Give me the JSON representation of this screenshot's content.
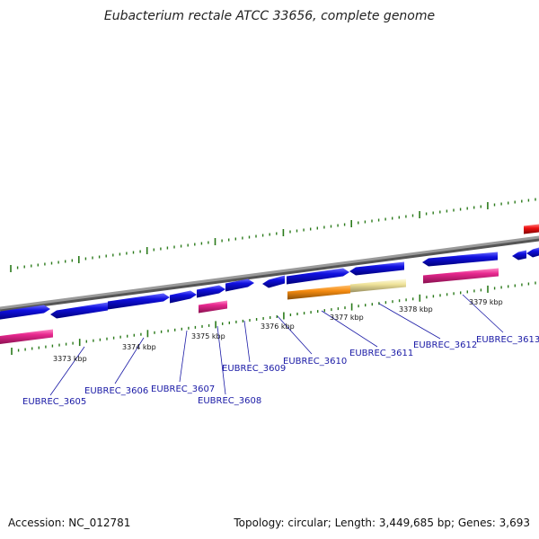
{
  "title": "Eubacterium rectale ATCC 33656, complete genome",
  "accession_text": "Accession: NC_012781",
  "summary_text": "Topology: circular; Length: 3,449,685 bp; Genes: 3,693",
  "colors": {
    "backbone": "#808080",
    "cds_forward": "#1010e0",
    "cds_reverse": "#e8288f",
    "orange_feature": "#f58b10",
    "beige_feature": "#efe39a",
    "red_feature": "#ee1010",
    "tick": "#2a7a1a",
    "gene_label": "#1a1aa6"
  },
  "scale_ticks": [
    {
      "label": "3373 kbp"
    },
    {
      "label": "3374 kbp"
    },
    {
      "label": "3375 kbp"
    },
    {
      "label": "3376 kbp"
    },
    {
      "label": "3377 kbp"
    },
    {
      "label": "3378 kbp"
    },
    {
      "label": "3379 kbp"
    }
  ],
  "gene_labels": [
    {
      "label": "EUBREC_3605"
    },
    {
      "label": "EUBREC_3606"
    },
    {
      "label": "EUBREC_3607"
    },
    {
      "label": "EUBREC_3608"
    },
    {
      "label": "EUBREC_3609"
    },
    {
      "label": "EUBREC_3610"
    },
    {
      "label": "EUBREC_3611"
    },
    {
      "label": "EUBREC_3612"
    },
    {
      "label": "EUBREC_3613"
    }
  ]
}
